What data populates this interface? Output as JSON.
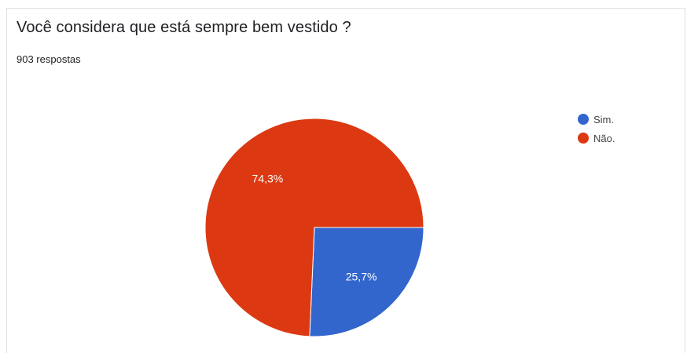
{
  "question": {
    "title": "Você considera que está sempre bem vestido ?",
    "responses": "903 respostas"
  },
  "chart_data": {
    "type": "pie",
    "title": "Você considera que está sempre bem vestido ?",
    "categories": [
      "Sim.",
      "Não."
    ],
    "values": [
      25.7,
      74.3
    ],
    "labels": [
      "25,7%",
      "74,3%"
    ],
    "colors": [
      "#3366cc",
      "#dc3912"
    ],
    "legend": "right",
    "start_angle_deg": 90,
    "direction": "clockwise"
  }
}
